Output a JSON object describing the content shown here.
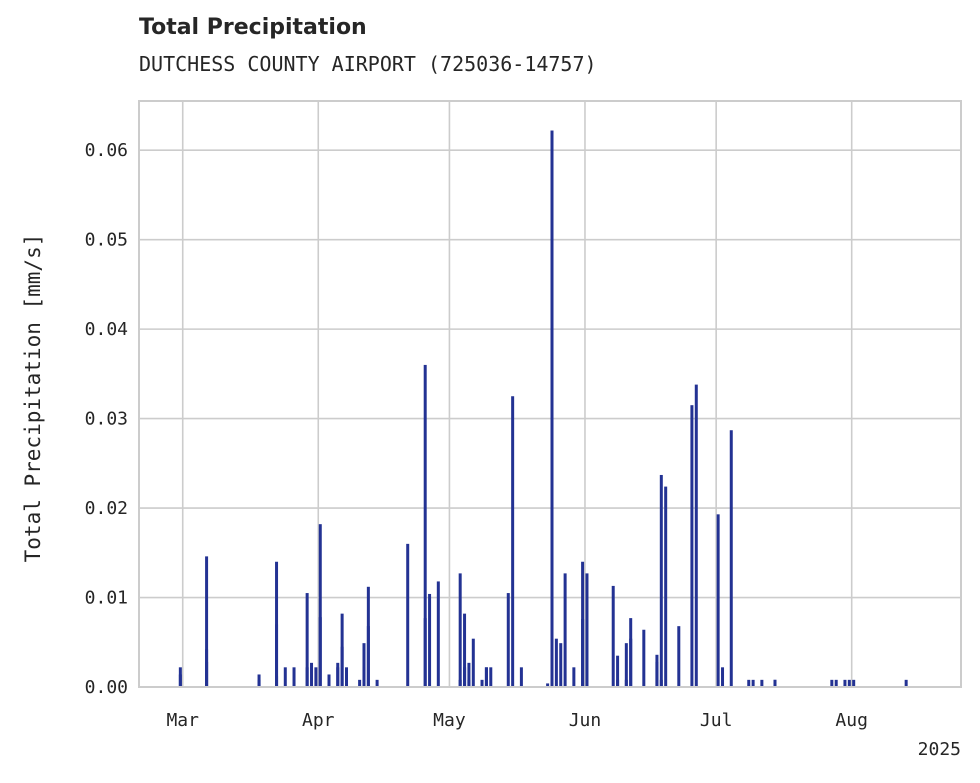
{
  "title": "Total Precipitation",
  "subtitle": "DUTCHESS COUNTY AIRPORT (725036-14757)",
  "chart_data": {
    "type": "bar",
    "ylabel": "Total Precipitation [mm/s]",
    "xlabel": "",
    "year_label": "2025",
    "ylim": [
      0,
      0.0655
    ],
    "xlim": [
      "2025-02-19",
      "2025-08-26"
    ],
    "grid": true,
    "color": "#233293",
    "yticks": [
      0.0,
      0.01,
      0.02,
      0.03,
      0.04,
      0.05,
      0.06
    ],
    "ytick_labels": [
      "0.00",
      "0.01",
      "0.02",
      "0.03",
      "0.04",
      "0.05",
      "0.06"
    ],
    "xticks": [
      "2025-03-01",
      "2025-04-01",
      "2025-05-01",
      "2025-06-01",
      "2025-07-01",
      "2025-08-01"
    ],
    "xtick_labels": [
      "Mar",
      "Apr",
      "May",
      "Jun",
      "Jul",
      "Aug"
    ],
    "x": [
      "2025-02-28",
      "2025-02-28",
      "2025-03-06",
      "2025-03-06",
      "2025-03-06",
      "2025-03-18",
      "2025-03-18",
      "2025-03-22",
      "2025-03-22",
      "2025-03-22",
      "2025-03-24",
      "2025-03-26",
      "2025-03-29",
      "2025-03-29",
      "2025-03-30",
      "2025-03-31",
      "2025-04-01",
      "2025-04-01",
      "2025-04-03",
      "2025-04-05",
      "2025-04-05",
      "2025-04-06",
      "2025-04-06",
      "2025-04-07",
      "2025-04-10",
      "2025-04-11",
      "2025-04-11",
      "2025-04-12",
      "2025-04-12",
      "2025-04-14",
      "2025-04-21",
      "2025-04-25",
      "2025-04-25",
      "2025-04-26",
      "2025-04-28",
      "2025-05-03",
      "2025-05-03",
      "2025-05-04",
      "2025-05-04",
      "2025-05-04",
      "2025-05-05",
      "2025-05-05",
      "2025-05-06",
      "2025-05-08",
      "2025-05-09",
      "2025-05-09",
      "2025-05-10",
      "2025-05-14",
      "2025-05-15",
      "2025-05-17",
      "2025-05-23",
      "2025-05-24",
      "2025-05-24",
      "2025-05-25",
      "2025-05-26",
      "2025-05-27",
      "2025-05-29",
      "2025-05-31",
      "2025-05-31",
      "2025-06-01",
      "2025-06-07",
      "2025-06-08",
      "2025-06-08",
      "2025-06-10",
      "2025-06-10",
      "2025-06-11",
      "2025-06-11",
      "2025-06-14",
      "2025-06-17",
      "2025-06-17",
      "2025-06-18",
      "2025-06-18",
      "2025-06-19",
      "2025-06-22",
      "2025-06-25",
      "2025-06-26",
      "2025-07-01",
      "2025-07-02",
      "2025-07-04",
      "2025-07-08",
      "2025-07-09",
      "2025-07-11",
      "2025-07-14",
      "2025-07-14",
      "2025-07-27",
      "2025-07-28",
      "2025-07-30",
      "2025-07-31",
      "2025-08-01",
      "2025-08-13"
    ],
    "values": [
      0.0014,
      0.0022,
      0.0146,
      0.0042,
      0.0028,
      0.0014,
      0.0008,
      0.014,
      0.007,
      0.0012,
      0.0022,
      0.0022,
      0.0022,
      0.0105,
      0.0027,
      0.0022,
      0.0182,
      0.0078,
      0.0014,
      0.0022,
      0.0027,
      0.0082,
      0.0045,
      0.0022,
      0.0008,
      0.0049,
      0.0022,
      0.0112,
      0.0068,
      0.0008,
      0.016,
      0.0077,
      0.036,
      0.0104,
      0.0118,
      0.0008,
      0.0127,
      0.0082,
      0.0022,
      0.0022,
      0.0027,
      0.0008,
      0.0054,
      0.0008,
      0.0022,
      0.0022,
      0.0022,
      0.0105,
      0.0325,
      0.0022,
      0.0004,
      0.0622,
      0.0022,
      0.0054,
      0.0049,
      0.0127,
      0.0022,
      0.014,
      0.0076,
      0.0127,
      0.0113,
      0.0035,
      0.0008,
      0.0049,
      0.0008,
      0.0077,
      0.0054,
      0.0064,
      0.0036,
      0.0028,
      0.0008,
      0.0237,
      0.0224,
      0.0068,
      0.0315,
      0.0338,
      0.0193,
      0.0022,
      0.0287,
      0.0008,
      0.0008,
      0.0008,
      0.0008,
      0.0008,
      0.0008,
      0.0008,
      0.0008,
      0.0008,
      0.0008,
      0.0008
    ]
  }
}
